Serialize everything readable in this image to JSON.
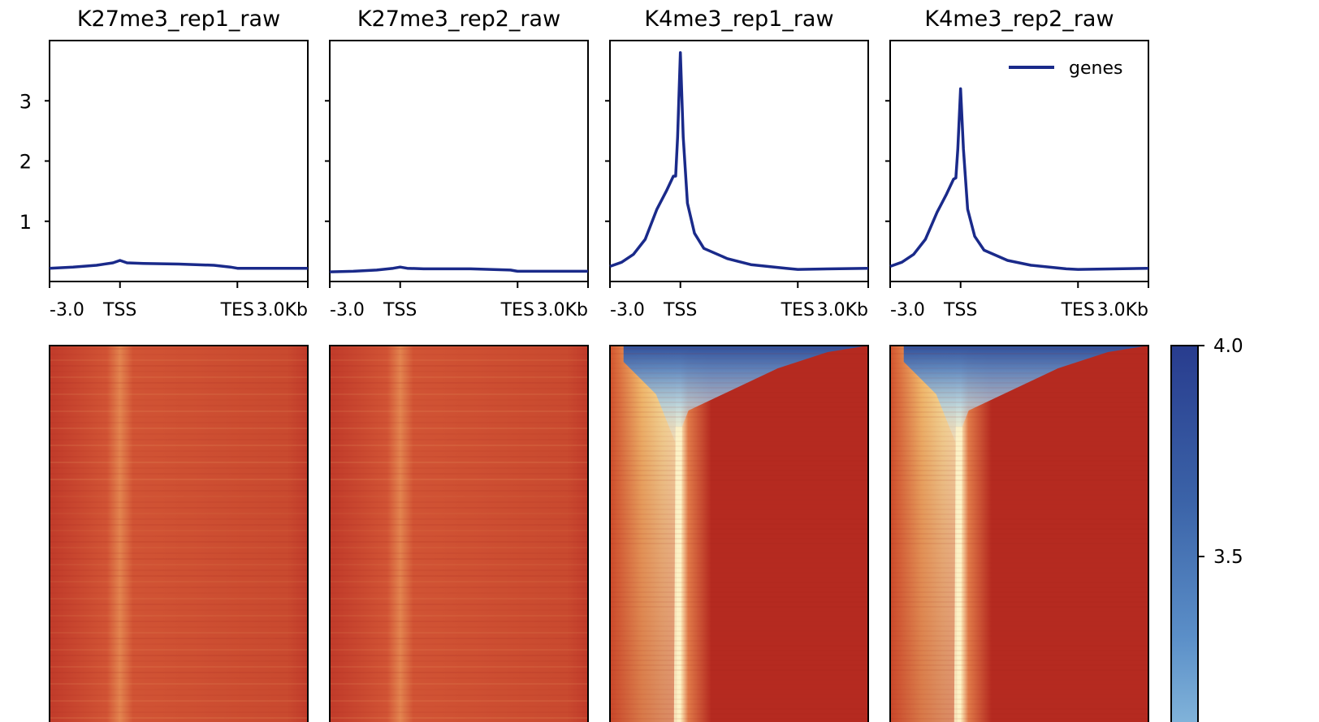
{
  "chart_data": {
    "type": "line",
    "panels": [
      {
        "title": "K27me3_rep1_raw",
        "profile": [
          [
            -3000,
            0.22
          ],
          [
            -2000,
            0.24
          ],
          [
            -1000,
            0.27
          ],
          [
            -300,
            0.31
          ],
          [
            0,
            0.35
          ],
          [
            300,
            0.31
          ],
          [
            1000,
            0.3
          ],
          [
            2500,
            0.29
          ],
          [
            4000,
            0.27
          ],
          [
            4700,
            0.24
          ],
          [
            5000,
            0.22
          ],
          [
            8000,
            0.22
          ]
        ],
        "heatmap_style": "low"
      },
      {
        "title": "K27me3_rep2_raw",
        "profile": [
          [
            -3000,
            0.16
          ],
          [
            -2000,
            0.17
          ],
          [
            -1000,
            0.19
          ],
          [
            -300,
            0.22
          ],
          [
            0,
            0.24
          ],
          [
            300,
            0.22
          ],
          [
            1000,
            0.21
          ],
          [
            3000,
            0.21
          ],
          [
            4700,
            0.19
          ],
          [
            5000,
            0.17
          ],
          [
            8000,
            0.17
          ]
        ],
        "heatmap_style": "low"
      },
      {
        "title": "K4me3_rep1_raw",
        "profile": [
          [
            -3000,
            0.25
          ],
          [
            -2500,
            0.32
          ],
          [
            -2000,
            0.45
          ],
          [
            -1500,
            0.7
          ],
          [
            -1000,
            1.2
          ],
          [
            -600,
            1.5
          ],
          [
            -300,
            1.75
          ],
          [
            -200,
            1.75
          ],
          [
            -120,
            2.4
          ],
          [
            0,
            3.8
          ],
          [
            120,
            2.4
          ],
          [
            300,
            1.3
          ],
          [
            600,
            0.8
          ],
          [
            1000,
            0.55
          ],
          [
            2000,
            0.38
          ],
          [
            3000,
            0.28
          ],
          [
            4500,
            0.22
          ],
          [
            5000,
            0.2
          ],
          [
            8000,
            0.22
          ]
        ],
        "heatmap_style": "peak"
      },
      {
        "title": "K4me3_rep2_raw",
        "profile": [
          [
            -3000,
            0.25
          ],
          [
            -2500,
            0.32
          ],
          [
            -2000,
            0.45
          ],
          [
            -1500,
            0.7
          ],
          [
            -1000,
            1.15
          ],
          [
            -600,
            1.45
          ],
          [
            -300,
            1.7
          ],
          [
            -200,
            1.72
          ],
          [
            -120,
            2.2
          ],
          [
            0,
            3.2
          ],
          [
            120,
            2.2
          ],
          [
            300,
            1.2
          ],
          [
            600,
            0.75
          ],
          [
            1000,
            0.52
          ],
          [
            2000,
            0.35
          ],
          [
            3000,
            0.27
          ],
          [
            4500,
            0.21
          ],
          [
            5000,
            0.2
          ],
          [
            8000,
            0.22
          ]
        ],
        "heatmap_style": "peak"
      }
    ],
    "ylim": [
      0,
      4
    ],
    "yticks": [
      1,
      2,
      3
    ],
    "x_tick_labels": [
      "-3.0",
      "TSS",
      "TES",
      "3.0Kb"
    ],
    "legend": {
      "label": "genes",
      "placement": "top-right",
      "color": "#1a2a8a"
    },
    "colorbar": {
      "ticks": [
        "4.0",
        "3.5"
      ],
      "colormap": "RdYlBu"
    },
    "line_color": "#1a2a8a"
  }
}
